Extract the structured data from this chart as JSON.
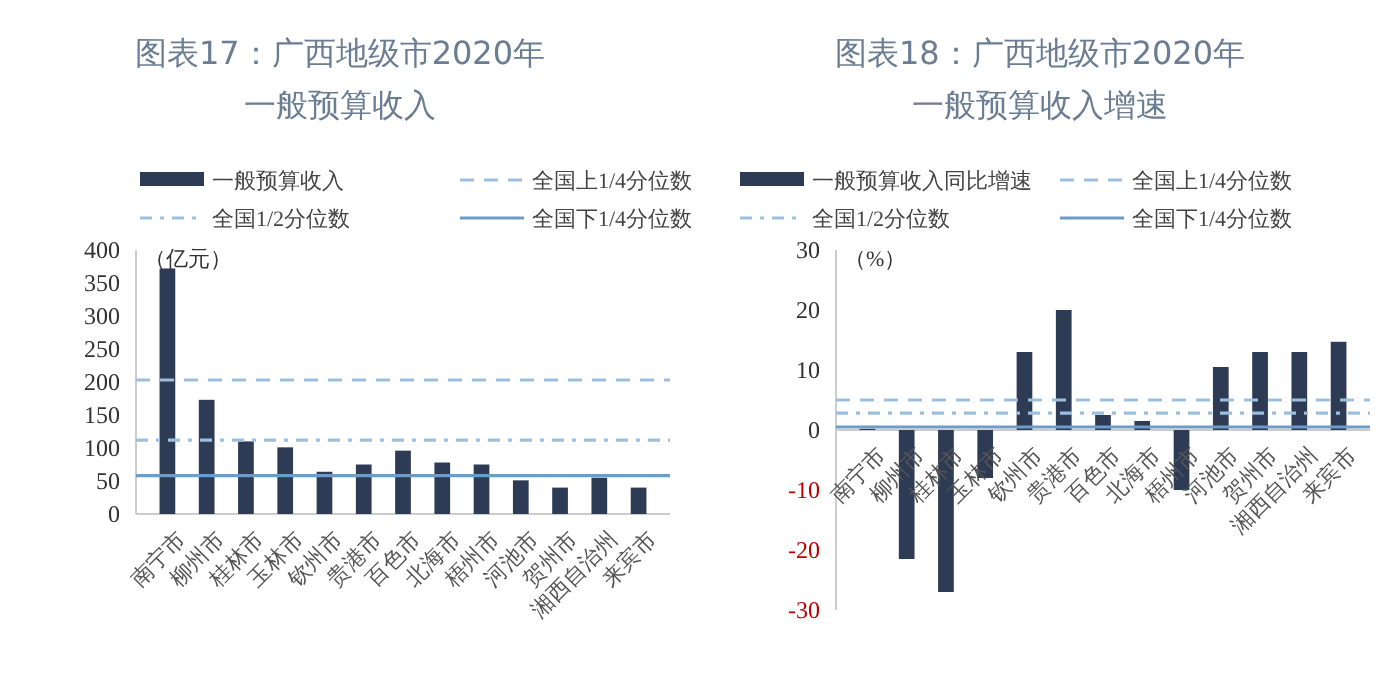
{
  "chart_data": [
    {
      "type": "bar",
      "title": "图表17：广西地级市2020年",
      "subtitle": "一般预算收入",
      "ylabel": "（亿元）",
      "categories": [
        "南宁市",
        "柳州市",
        "桂林市",
        "玉林市",
        "钦州市",
        "贵港市",
        "百色市",
        "北海市",
        "梧州市",
        "河池市",
        "贺州市",
        "湘西自治州",
        "来宾市"
      ],
      "series": [
        {
          "name": "一般预算收入",
          "color": "#2e3b55",
          "values": [
            372,
            173,
            110,
            101,
            64,
            75,
            96,
            78,
            75,
            51,
            40,
            55,
            40
          ]
        }
      ],
      "ylim": [
        0,
        400
      ],
      "yticks": [
        0,
        50,
        100,
        150,
        200,
        250,
        300,
        350,
        400
      ],
      "ref_lines": [
        {
          "axis": "y",
          "value": 203,
          "label": "全国上1/4分位数",
          "color": "#9dbfdf",
          "line_style": "dashed"
        },
        {
          "axis": "y",
          "value": 112,
          "label": "全国1/2分位数",
          "color": "#9dbfdf",
          "line_style": "dashdot"
        },
        {
          "axis": "y",
          "value": 58,
          "label": "全国下1/4分位数",
          "color": "#6d9cc8",
          "line_style": "solid"
        }
      ],
      "legend": "top",
      "grid": false
    },
    {
      "type": "bar",
      "title": "图表18：广西地级市2020年",
      "subtitle": "一般预算收入增速",
      "ylabel": "（%）",
      "categories": [
        "南宁市",
        "柳州市",
        "桂林市",
        "玉林市",
        "钦州市",
        "贵港市",
        "百色市",
        "北海市",
        "梧州市",
        "河池市",
        "贺州市",
        "湘西自治州",
        "来宾市"
      ],
      "series": [
        {
          "name": "一般预算收入同比增速",
          "color": "#2e3b55",
          "values": [
            0.2,
            -21.5,
            -27,
            -8,
            13,
            20,
            2.5,
            1.5,
            -10,
            10.5,
            13,
            13,
            14.7
          ]
        }
      ],
      "ylim": [
        -30,
        30
      ],
      "yticks": [
        -30,
        -20,
        -10,
        0,
        10,
        20,
        30
      ],
      "ref_lines": [
        {
          "axis": "y",
          "value": 5,
          "label": "全国上1/4分位数",
          "color": "#9dbfdf",
          "line_style": "dashed"
        },
        {
          "axis": "y",
          "value": 2.8,
          "label": "全国1/2分位数",
          "color": "#9dbfdf",
          "line_style": "dashdot"
        },
        {
          "axis": "y",
          "value": 0.5,
          "label": "全国下1/4分位数",
          "color": "#6d9cc8",
          "line_style": "solid"
        }
      ],
      "legend": "top",
      "grid": false
    }
  ]
}
